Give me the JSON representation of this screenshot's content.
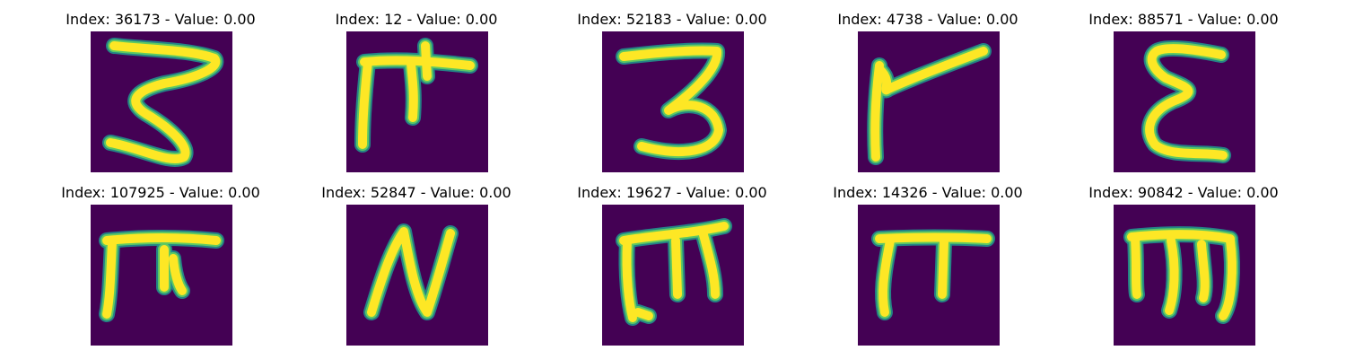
{
  "colors": {
    "background": "#440154",
    "stroke_core": "#fde725",
    "stroke_mid": "#5ec962",
    "stroke_edge": "#21918c"
  },
  "panels": [
    {
      "title": "Index: 36173 - Value: 0.00",
      "glyph": "z-curly"
    },
    {
      "title": "Index: 12 - Value: 0.00",
      "glyph": "pi-like"
    },
    {
      "title": "Index: 52183 - Value: 0.00",
      "glyph": "three"
    },
    {
      "title": "Index: 4738 - Value: 0.00",
      "glyph": "flag"
    },
    {
      "title": "Index: 88571 - Value: 0.00",
      "glyph": "epsilon"
    },
    {
      "title": "Index: 107925 - Value: 0.00",
      "glyph": "pi-thick"
    },
    {
      "title": "Index: 52847 - Value: 0.00",
      "glyph": "n-shape"
    },
    {
      "title": "Index: 19627 - Value: 0.00",
      "glyph": "m-shape"
    },
    {
      "title": "Index: 14326 - Value: 0.00",
      "glyph": "pi-thin"
    },
    {
      "title": "Index: 90842 - Value: 0.00",
      "glyph": "m-round"
    }
  ]
}
